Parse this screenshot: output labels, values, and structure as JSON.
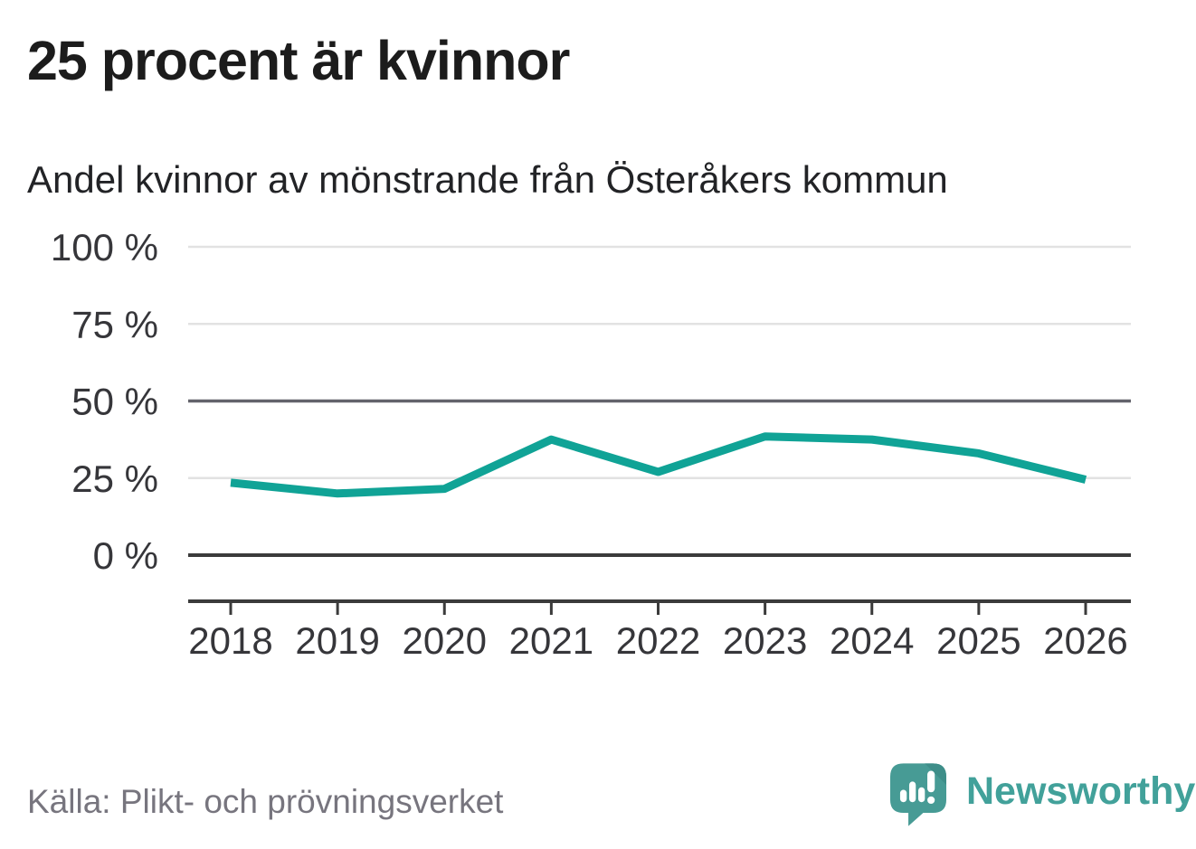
{
  "header": {
    "title": "25 procent är kvinnor",
    "subtitle": "Andel kvinnor av mönstrande från Österåkers kommun"
  },
  "chart_data": {
    "type": "line",
    "title": "25 procent är kvinnor",
    "subtitle": "Andel kvinnor av mönstrande från Österåkers kommun",
    "x": [
      2018,
      2019,
      2020,
      2021,
      2022,
      2023,
      2024,
      2025,
      2026
    ],
    "series": [
      {
        "name": "Andel kvinnor av mönstrande",
        "values": [
          23.5,
          20,
          21.5,
          37.5,
          27,
          38.5,
          37.5,
          33,
          24.5
        ]
      }
    ],
    "unit": "%",
    "ylim": [
      0,
      100
    ],
    "yticks": [
      0,
      25,
      50,
      75,
      100
    ],
    "ytick_suffix": " %",
    "grid": "horizontal",
    "emphasized_gridlines": [
      0,
      50
    ],
    "legend": "none",
    "line_color": "#10a396"
  },
  "footer": {
    "source": "Källa: Plikt- och prövningsverket",
    "brand": "Newsworthy"
  },
  "colors": {
    "line": "#10a396",
    "grid_light": "#e2e2e2",
    "grid_mid": "#63636b",
    "grid_dark": "#3b3b3b",
    "axis_text": "#36363a",
    "brand_teal": "#479b95",
    "brand_text": "#42a19a"
  }
}
